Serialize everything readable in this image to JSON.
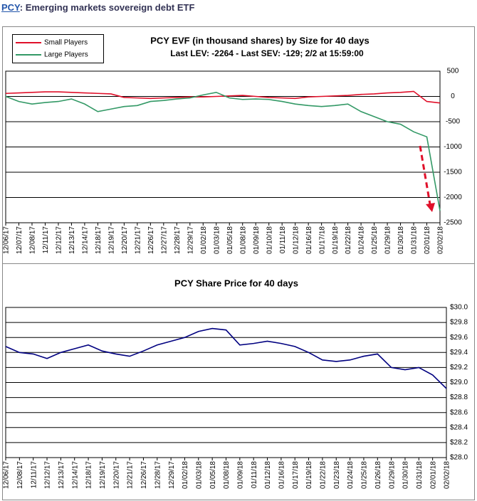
{
  "header": {
    "ticker": "PCY",
    "title": ": Emerging markets sovereign debt ETF"
  },
  "chart_data": [
    {
      "type": "line",
      "title": "PCY EVF (in thousand shares) by Size for 40 days",
      "subtitle": "Last LEV: -2264 - Last SEV: -129; 2/2 at 15:59:00",
      "categories": [
        "12/06/17",
        "12/07/17",
        "12/08/17",
        "12/11/17",
        "12/12/17",
        "12/13/17",
        "12/14/17",
        "12/18/17",
        "12/19/17",
        "12/20/17",
        "12/21/17",
        "12/26/17",
        "12/27/17",
        "12/28/17",
        "12/29/17",
        "01/02/18",
        "01/03/18",
        "01/05/18",
        "01/08/18",
        "01/09/18",
        "01/10/18",
        "01/11/18",
        "01/12/18",
        "01/16/18",
        "01/17/18",
        "01/19/18",
        "01/22/18",
        "01/24/18",
        "01/25/18",
        "01/29/18",
        "01/30/18",
        "01/31/18",
        "02/01/18",
        "02/02/18"
      ],
      "series": [
        {
          "name": "Small Players",
          "color": "#e0102a",
          "values": [
            60,
            70,
            80,
            90,
            90,
            80,
            70,
            60,
            50,
            -20,
            -30,
            -40,
            -30,
            -20,
            -10,
            -10,
            0,
            10,
            20,
            0,
            -20,
            -30,
            -40,
            -10,
            0,
            10,
            20,
            40,
            50,
            70,
            80,
            100,
            -100,
            -129
          ]
        },
        {
          "name": "Large Players",
          "color": "#339966",
          "values": [
            0,
            -100,
            -150,
            -120,
            -100,
            -50,
            -150,
            -300,
            -250,
            -200,
            -180,
            -100,
            -80,
            -50,
            -30,
            30,
            80,
            -30,
            -60,
            -50,
            -60,
            -100,
            -150,
            -180,
            -200,
            -180,
            -150,
            -300,
            -400,
            -500,
            -550,
            -700,
            -800,
            -2264
          ]
        }
      ],
      "ylim": [
        -2500,
        500
      ],
      "yticks": [
        500,
        0,
        -500,
        -1000,
        -1500,
        -2000,
        -2500
      ],
      "y_axis_position": "right",
      "grid": true,
      "legend": "upper left"
    },
    {
      "type": "line",
      "title": "PCY Share Price for 40 days",
      "categories": [
        "12/06/17",
        "12/08/17",
        "12/11/17",
        "12/12/17",
        "12/13/17",
        "12/14/17",
        "12/18/17",
        "12/19/17",
        "12/20/17",
        "12/21/17",
        "12/26/17",
        "12/28/17",
        "12/29/17",
        "01/02/18",
        "01/03/18",
        "01/05/18",
        "01/08/18",
        "01/09/18",
        "01/11/18",
        "01/12/18",
        "01/16/18",
        "01/17/18",
        "01/19/18",
        "01/22/18",
        "01/23/18",
        "01/24/18",
        "01/25/18",
        "01/26/18",
        "01/29/18",
        "01/30/18",
        "01/31/18",
        "02/01/18",
        "02/02/18"
      ],
      "series": [
        {
          "color": "#000080",
          "values": [
            29.48,
            29.4,
            29.38,
            29.32,
            29.4,
            29.45,
            29.5,
            29.42,
            29.38,
            29.35,
            29.42,
            29.5,
            29.55,
            29.6,
            29.68,
            29.72,
            29.7,
            29.5,
            29.52,
            29.55,
            29.52,
            29.48,
            29.4,
            29.3,
            29.28,
            29.3,
            29.35,
            29.38,
            29.2,
            29.17,
            29.2,
            29.1,
            28.92
          ]
        }
      ],
      "ylim": [
        28.0,
        30.0
      ],
      "yticks": [
        {
          "value": 30.0,
          "label": "$30.0"
        },
        {
          "value": 29.8,
          "label": "$29.8"
        },
        {
          "value": 29.6,
          "label": "$29.6"
        },
        {
          "value": 29.4,
          "label": "$29.4"
        },
        {
          "value": 29.2,
          "label": "$29.2"
        },
        {
          "value": 29.0,
          "label": "$29.0"
        },
        {
          "value": 28.8,
          "label": "$28.8"
        },
        {
          "value": 28.6,
          "label": "$28.6"
        },
        {
          "value": 28.4,
          "label": "$28.4"
        },
        {
          "value": 28.2,
          "label": "$28.2"
        },
        {
          "value": 28.0,
          "label": "$28.0"
        }
      ],
      "y_axis_position": "right",
      "grid": true
    }
  ]
}
